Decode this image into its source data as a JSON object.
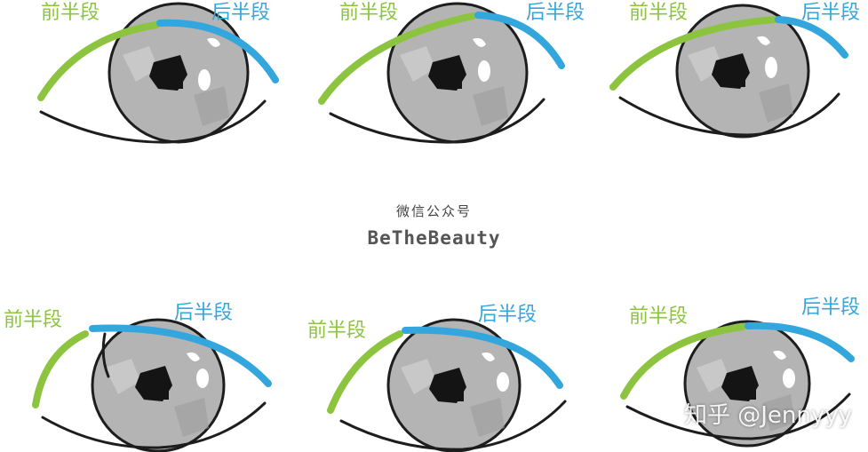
{
  "diagram": {
    "center_subtitle": "微信公众号",
    "center_title": "BeTheBeauty",
    "watermark": "知乎 @Jennyyy",
    "colors": {
      "front": "#8cc43f",
      "back": "#33a6dd",
      "outline": "#1d1d1d",
      "iris": "#b4b4b4",
      "pupil": "#141414"
    },
    "eyes": [
      {
        "front_label": "前半段",
        "back_label": "后半段"
      },
      {
        "front_label": "前半段",
        "back_label": "后半段"
      },
      {
        "front_label": "前半段",
        "back_label": "后半段"
      },
      {
        "front_label": "前半段",
        "back_label": "后半段"
      },
      {
        "front_label": "前半段",
        "back_label": "后半段"
      },
      {
        "front_label": "前半段",
        "back_label": "后半段"
      }
    ]
  }
}
